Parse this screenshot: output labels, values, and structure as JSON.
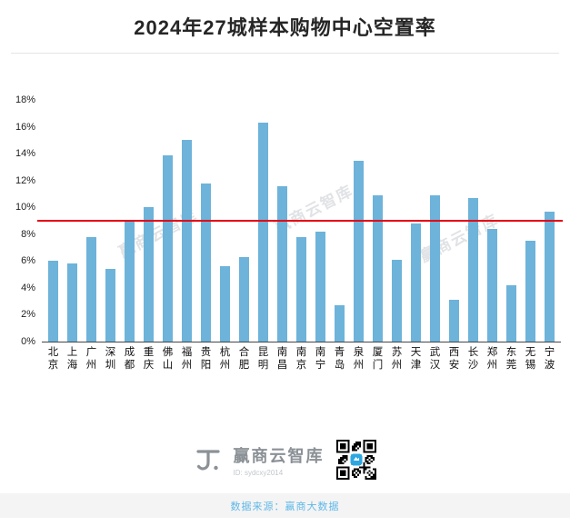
{
  "title": "2024年27城样本购物中心空置率",
  "chart_data": {
    "type": "bar",
    "title": "2024年27城样本购物中心空置率",
    "categories": [
      "北京",
      "上海",
      "广州",
      "深圳",
      "成都",
      "重庆",
      "佛山",
      "福州",
      "贵阳",
      "杭州",
      "合肥",
      "昆明",
      "南昌",
      "南京",
      "南宁",
      "青岛",
      "泉州",
      "厦门",
      "苏州",
      "天津",
      "武汉",
      "西安",
      "长沙",
      "郑州",
      "东莞",
      "无锡",
      "宁波"
    ],
    "values": [
      6.0,
      5.8,
      7.8,
      5.4,
      8.9,
      10.0,
      13.9,
      15.0,
      11.8,
      5.6,
      6.3,
      16.3,
      11.6,
      7.8,
      8.2,
      2.7,
      13.5,
      10.9,
      6.1,
      8.8,
      10.9,
      3.1,
      10.7,
      8.4,
      4.2,
      7.5,
      9.7
    ],
    "unit": "%",
    "ylim": [
      0,
      18
    ],
    "yticks": [
      "0%",
      "2%",
      "4%",
      "6%",
      "8%",
      "10%",
      "12%",
      "14%",
      "16%",
      "18%"
    ],
    "reference_line": {
      "value": 9,
      "color": "#e60012"
    },
    "bar_color": "#6db3da",
    "grid": false,
    "legend_position": "none",
    "xlabel": "",
    "ylabel": ""
  },
  "watermark": {
    "text": "赢商云智库"
  },
  "footer": {
    "brand": "赢商云智库",
    "brand_id": "ID: sydcxy2014",
    "source": "数据来源：赢商大数据"
  },
  "colors": {
    "bar": "#6db3da",
    "reference_line": "#e60012",
    "source_text": "#5fb8e8",
    "qr_center": "#2ea7e0"
  }
}
